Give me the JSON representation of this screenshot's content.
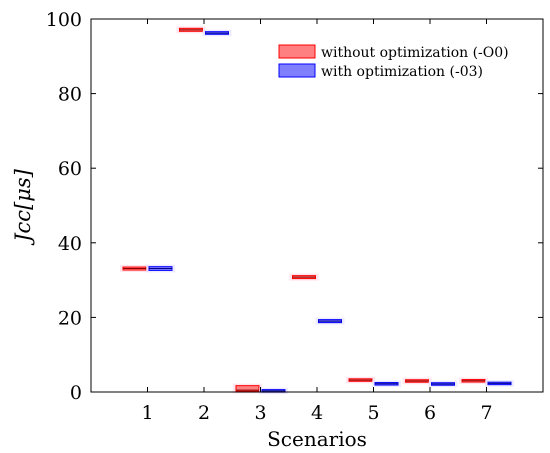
{
  "chart_data": {
    "type": "box",
    "xlabel": "Scenarios",
    "ylabel": "Jcc[μs]",
    "categories": [
      "1",
      "2",
      "3",
      "4",
      "5",
      "6",
      "7"
    ],
    "ylim": [
      0,
      100
    ],
    "yticks": [
      0,
      20,
      40,
      60,
      80,
      100
    ],
    "grid": false,
    "legend_position": "top-right",
    "series": [
      {
        "name": "without optimization (-O0)",
        "fill": "#ff8080",
        "stroke": "#ff0000",
        "boxes": [
          {
            "low": 32.7,
            "high": 33.5,
            "median": 33.1
          },
          {
            "low": 96.7,
            "high": 97.5,
            "median": 97.1
          },
          {
            "low": 0.2,
            "high": 1.7,
            "median": 0.5
          },
          {
            "low": 30.4,
            "high": 31.2,
            "median": 30.8
          },
          {
            "low": 3.1,
            "high": 3.3,
            "median": 3.2
          },
          {
            "low": 2.8,
            "high": 3.1,
            "median": 2.95
          },
          {
            "low": 2.9,
            "high": 3.1,
            "median": 3.0
          }
        ]
      },
      {
        "name": "with optimization (-03)",
        "fill": "#8080ff",
        "stroke": "#0000ff",
        "boxes": [
          {
            "low": 32.6,
            "high": 33.6,
            "median": 33.1
          },
          {
            "low": 95.9,
            "high": 96.6,
            "median": 96.2
          },
          {
            "low": 0.1,
            "high": 0.5,
            "median": 0.3
          },
          {
            "low": 18.6,
            "high": 19.4,
            "median": 19.0
          },
          {
            "low": 2.1,
            "high": 2.3,
            "median": 2.2
          },
          {
            "low": 2.0,
            "high": 2.3,
            "median": 2.15
          },
          {
            "low": 2.2,
            "high": 2.4,
            "median": 2.3
          }
        ]
      }
    ]
  }
}
